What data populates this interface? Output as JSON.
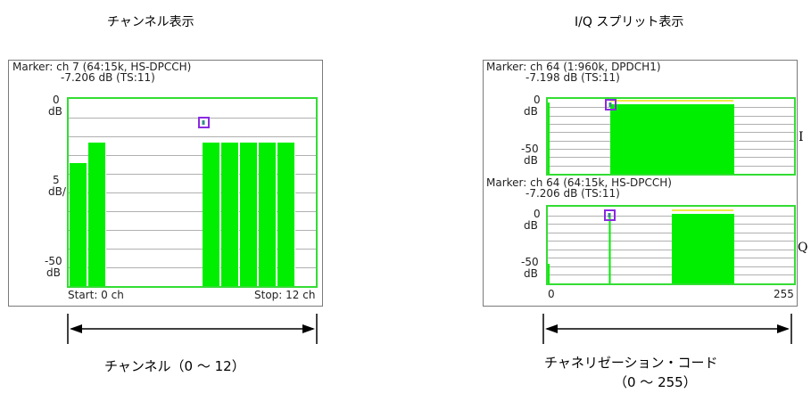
{
  "left": {
    "title": "チャンネル表示",
    "marker_line1": "Marker: ch 7 (64:15k, HS-DPCCH)",
    "marker_line2": "-7.206 dB (TS:11)",
    "y_top_value": "0",
    "y_top_unit": "dB",
    "y_scale_value": "5",
    "y_scale_unit": "dB/",
    "y_bottom_value": "-50",
    "y_bottom_unit": "dB",
    "start_label": "Start: 0 ch",
    "stop_label": "Stop: 12 ch",
    "caption": "チャンネル（0 ～ 12）"
  },
  "right": {
    "title": "I/Q スプリット表示",
    "marker_i_line1": "Marker: ch 64 (1:960k, DPDCH1)",
    "marker_i_line2": "-7.198 dB (TS:11)",
    "marker_q_line1": "Marker: ch 64 (64:15k, HS-DPCCH)",
    "marker_q_line2": "-7.206 dB (TS:11)",
    "y_top_value": "0",
    "y_top_unit": "dB",
    "y_bottom_value": "-50",
    "y_bottom_unit": "dB",
    "x_start": "0",
    "x_end": "255",
    "label_i": "I",
    "label_q": "Q",
    "caption_line1": "チャネリゼーション・コード",
    "caption_line2": "（0 ～ 255）"
  },
  "colors": {
    "bar": "#00ee00",
    "plot_border": "#33dd33",
    "marker": "#8a2be2",
    "yellow_trace": "#e8e800",
    "grid": "#b0b0b0"
  }
}
